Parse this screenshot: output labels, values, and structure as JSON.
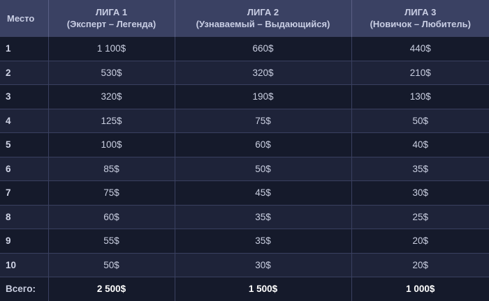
{
  "header": {
    "place": "Место",
    "leagues": [
      {
        "name": "ЛИГА 1",
        "range": "(Эксперт – Легенда)"
      },
      {
        "name": "ЛИГА 2",
        "range": "(Узнаваемый – Выдающийся)"
      },
      {
        "name": "ЛИГА 3",
        "range": "(Новичок – Любитель)"
      }
    ]
  },
  "rows": [
    {
      "place": "1",
      "values": [
        "1 100$",
        "660$",
        "440$"
      ]
    },
    {
      "place": "2",
      "values": [
        "530$",
        "320$",
        "210$"
      ]
    },
    {
      "place": "3",
      "values": [
        "320$",
        "190$",
        "130$"
      ]
    },
    {
      "place": "4",
      "values": [
        "125$",
        "75$",
        "50$"
      ]
    },
    {
      "place": "5",
      "values": [
        "100$",
        "60$",
        "40$"
      ]
    },
    {
      "place": "6",
      "values": [
        "85$",
        "50$",
        "35$"
      ]
    },
    {
      "place": "7",
      "values": [
        "75$",
        "45$",
        "30$"
      ]
    },
    {
      "place": "8",
      "values": [
        "60$",
        "35$",
        "25$"
      ]
    },
    {
      "place": "9",
      "values": [
        "55$",
        "35$",
        "20$"
      ]
    },
    {
      "place": "10",
      "values": [
        "50$",
        "30$",
        "20$"
      ]
    }
  ],
  "total": {
    "label": "Всего:",
    "values": [
      "2 500$",
      "1 500$",
      "1 000$"
    ]
  },
  "colors": {
    "header_bg": "#3a4163",
    "row_dark": "#151a2b",
    "row_light": "#1e2339"
  }
}
